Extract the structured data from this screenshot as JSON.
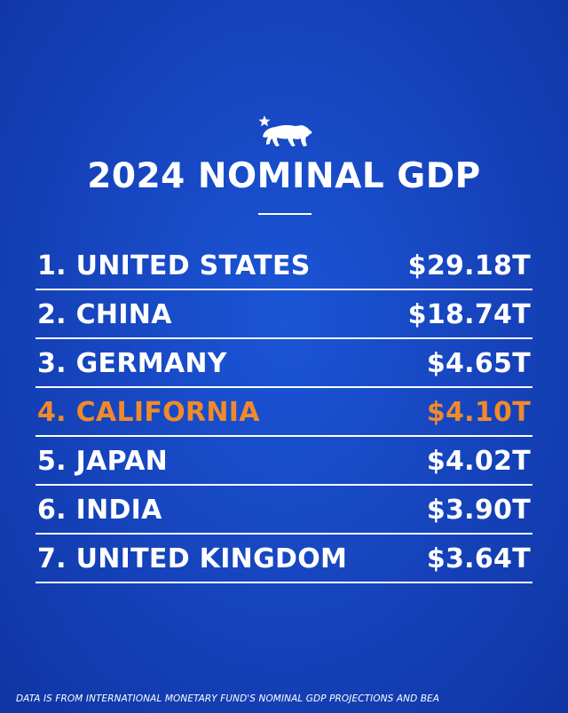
{
  "logo": {
    "icon": "california-bear-star-icon"
  },
  "title": "2024 NOMINAL GDP",
  "chart_data": {
    "type": "table",
    "title": "2024 NOMINAL GDP",
    "rows": [
      {
        "rank": "1.",
        "name": "UNITED STATES",
        "value": 29.18,
        "label": "$29.18T",
        "highlight": false
      },
      {
        "rank": "2.",
        "name": "CHINA",
        "value": 18.74,
        "label": "$18.74T",
        "highlight": false
      },
      {
        "rank": "3.",
        "name": "GERMANY",
        "value": 4.65,
        "label": "$4.65T",
        "highlight": false
      },
      {
        "rank": "4.",
        "name": "CALIFORNIA",
        "value": 4.1,
        "label": "$4.10T",
        "highlight": true
      },
      {
        "rank": "5.",
        "name": "JAPAN",
        "value": 4.02,
        "label": "$4.02T",
        "highlight": false
      },
      {
        "rank": "6.",
        "name": "INDIA",
        "value": 3.9,
        "label": "$3.90T",
        "highlight": false
      },
      {
        "rank": "7.",
        "name": "UNITED KINGDOM",
        "value": 3.64,
        "label": "$3.64T",
        "highlight": false
      }
    ]
  },
  "footnote": "DATA IS FROM INTERNATIONAL MONETARY FUND'S NOMINAL GDP PROJECTIONS AND BEA",
  "colors": {
    "background": "#1746c0",
    "text": "#ffffff",
    "highlight": "#f08a2c"
  }
}
